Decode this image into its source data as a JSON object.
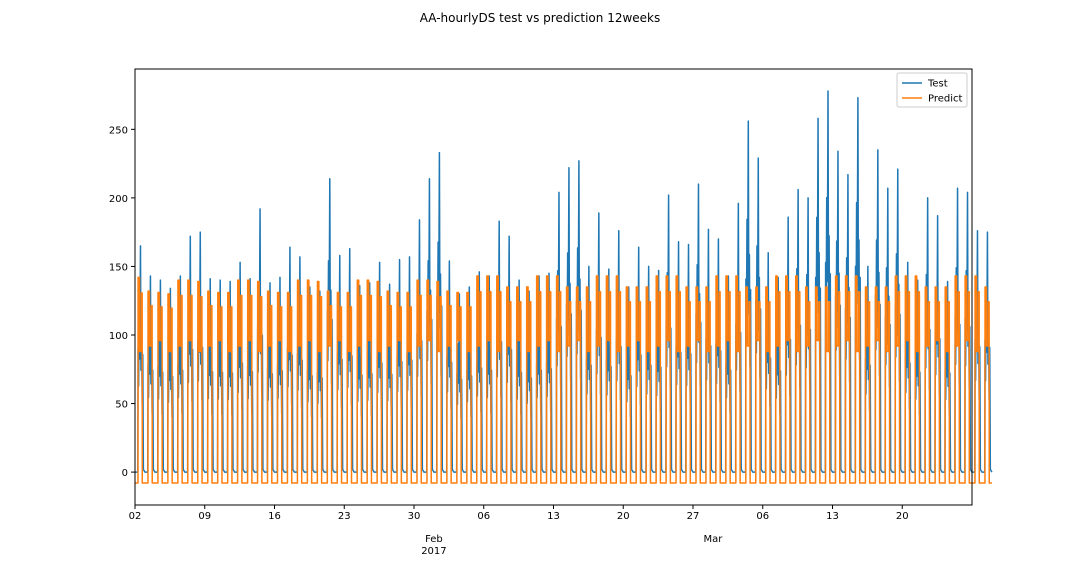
{
  "chart_data": {
    "type": "line",
    "title": "AA-hourlyDS test vs prediction 12weeks",
    "xlabel": "",
    "ylabel": "",
    "x_range": [
      "2017-01-02",
      "2017-03-27"
    ],
    "ylim": [
      -24,
      294
    ],
    "yticks": [
      0,
      50,
      100,
      150,
      200,
      250
    ],
    "xticks": [
      {
        "date": "2017-01-02",
        "label": "02"
      },
      {
        "date": "2017-01-09",
        "label": "09"
      },
      {
        "date": "2017-01-16",
        "label": "16"
      },
      {
        "date": "2017-01-23",
        "label": "23"
      },
      {
        "date": "2017-01-30",
        "label": "30"
      },
      {
        "date": "2017-02-06",
        "label": "06"
      },
      {
        "date": "2017-02-13",
        "label": "13"
      },
      {
        "date": "2017-02-20",
        "label": "20"
      },
      {
        "date": "2017-02-27",
        "label": "27"
      },
      {
        "date": "2017-03-06",
        "label": "06"
      },
      {
        "date": "2017-03-13",
        "label": "13"
      },
      {
        "date": "2017-03-20",
        "label": "20"
      }
    ],
    "month_labels": [
      {
        "date": "2017-02-01",
        "label": "Feb",
        "sublabel": "2017"
      },
      {
        "date": "2017-03-01",
        "label": "Mar",
        "sublabel": ""
      }
    ],
    "grid": false,
    "legend": "top-right",
    "series": [
      {
        "name": "Test",
        "color": "#1f77b4",
        "daily_peaks": [
          165,
          143,
          140,
          134,
          143,
          172,
          175,
          141,
          140,
          139,
          153,
          141,
          192,
          138,
          142,
          164,
          157,
          135,
          132,
          214,
          158,
          163,
          136,
          138,
          153,
          137,
          155,
          157,
          184,
          214,
          233,
          154,
          130,
          135,
          146,
          143,
          183,
          172,
          140,
          132,
          143,
          145,
          204,
          222,
          227,
          150,
          189,
          148,
          176,
          135,
          164,
          150,
          147,
          202,
          168,
          166,
          210,
          177,
          170,
          143,
          196,
          256,
          229,
          160,
          142,
          186,
          206,
          200,
          258,
          278,
          234,
          217,
          273,
          150,
          235,
          207,
          221,
          153,
          140,
          200,
          187,
          139,
          207,
          204,
          176,
          175
        ],
        "base_level": 0,
        "weekly_pattern": "weekdays peak, weekends near zero"
      },
      {
        "name": "Predict",
        "color": "#ff7f0e",
        "daily_peaks": [
          142,
          132,
          131,
          130,
          140,
          140,
          139,
          132,
          131,
          131,
          140,
          140,
          139,
          132,
          131,
          131,
          140,
          140,
          139,
          132,
          131,
          131,
          140,
          140,
          139,
          132,
          131,
          131,
          140,
          140,
          139,
          132,
          131,
          131,
          143,
          143,
          143,
          135,
          135,
          135,
          143,
          143,
          143,
          135,
          135,
          135,
          143,
          143,
          143,
          135,
          135,
          135,
          143,
          143,
          143,
          135,
          135,
          135,
          143,
          143,
          143,
          135,
          135,
          135,
          143,
          143,
          143,
          135,
          135,
          135,
          143,
          143,
          143,
          135,
          135,
          135,
          143,
          143,
          143,
          135,
          135,
          135,
          143,
          143,
          143,
          135
        ],
        "base_level": -8,
        "weekly_pattern": "regular daily square pulses"
      }
    ]
  }
}
